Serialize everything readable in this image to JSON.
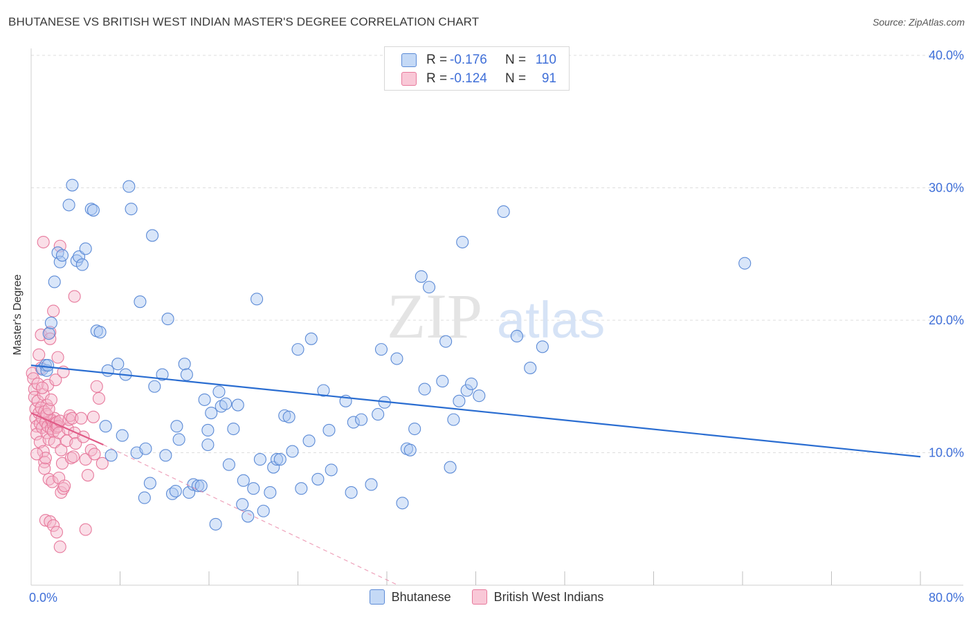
{
  "title": "BHUTANESE VS BRITISH WEST INDIAN MASTER'S DEGREE CORRELATION CHART",
  "source": "Source: ZipAtlas.com",
  "watermark": {
    "zip": "ZIP",
    "atlas": "atlas"
  },
  "colors": {
    "blue_fill": "#aac8f2",
    "blue_stroke": "#5b8ad6",
    "blue_line": "#2a6dd1",
    "pink_fill": "#f5b8cb",
    "pink_stroke": "#e7799c",
    "pink_line": "#e05a86",
    "grid": "#dddddd",
    "tick_text": "#3f6fd8"
  },
  "legend_top": [
    {
      "r_label": "R =",
      "r_value": "-0.176",
      "n_label": "N =",
      "n_value": "110"
    },
    {
      "r_label": "R =",
      "r_value": "-0.124",
      "n_label": "N =",
      "n_value": "91"
    }
  ],
  "legend_bottom": [
    {
      "label": "Bhutanese"
    },
    {
      "label": "British West Indians"
    }
  ],
  "chart_data": {
    "type": "scatter",
    "title": "BHUTANESE VS BRITISH WEST INDIAN MASTER'S DEGREE CORRELATION CHART",
    "xlabel": "",
    "ylabel": "Master's Degree",
    "xlim": [
      0,
      80
    ],
    "ylim": [
      0,
      40
    ],
    "x_tick_labels": [
      "0.0%",
      "80.0%"
    ],
    "y_ticks": [
      10,
      20,
      30,
      40
    ],
    "y_tick_labels": [
      "10.0%",
      "20.0%",
      "30.0%",
      "40.0%"
    ],
    "grid": true,
    "legend_position": "top-center",
    "series": [
      {
        "name": "Bhutanese",
        "r": -0.176,
        "n": 110,
        "trend": {
          "x": [
            0,
            80
          ],
          "y": [
            16.6,
            9.7
          ],
          "style": "solid"
        },
        "points": [
          [
            1.0,
            16.3
          ],
          [
            1.3,
            16.6
          ],
          [
            1.4,
            16.2
          ],
          [
            1.5,
            16.6
          ],
          [
            1.6,
            19.0
          ],
          [
            1.8,
            19.8
          ],
          [
            2.1,
            22.9
          ],
          [
            2.4,
            25.1
          ],
          [
            2.6,
            24.4
          ],
          [
            2.8,
            24.9
          ],
          [
            3.4,
            28.7
          ],
          [
            3.7,
            30.2
          ],
          [
            4.1,
            24.5
          ],
          [
            4.3,
            24.8
          ],
          [
            4.6,
            24.2
          ],
          [
            4.9,
            25.4
          ],
          [
            5.4,
            28.4
          ],
          [
            5.6,
            28.3
          ],
          [
            5.9,
            19.2
          ],
          [
            6.2,
            19.1
          ],
          [
            6.7,
            12.0
          ],
          [
            6.9,
            16.2
          ],
          [
            7.2,
            9.8
          ],
          [
            7.8,
            16.7
          ],
          [
            8.2,
            11.3
          ],
          [
            8.5,
            15.9
          ],
          [
            8.8,
            30.1
          ],
          [
            9.0,
            28.4
          ],
          [
            9.5,
            10.0
          ],
          [
            9.8,
            21.4
          ],
          [
            10.2,
            6.6
          ],
          [
            10.3,
            10.3
          ],
          [
            10.7,
            7.7
          ],
          [
            10.9,
            26.4
          ],
          [
            11.1,
            15.0
          ],
          [
            11.8,
            15.9
          ],
          [
            12.1,
            9.8
          ],
          [
            12.3,
            20.1
          ],
          [
            12.7,
            6.9
          ],
          [
            13.0,
            7.1
          ],
          [
            13.1,
            12.0
          ],
          [
            13.3,
            11.0
          ],
          [
            13.8,
            16.7
          ],
          [
            14.0,
            15.9
          ],
          [
            14.2,
            7.0
          ],
          [
            14.6,
            7.6
          ],
          [
            15.0,
            7.5
          ],
          [
            15.3,
            7.5
          ],
          [
            15.6,
            14.0
          ],
          [
            15.9,
            11.7
          ],
          [
            15.9,
            10.6
          ],
          [
            16.2,
            13.0
          ],
          [
            16.6,
            4.6
          ],
          [
            16.9,
            14.6
          ],
          [
            17.1,
            13.5
          ],
          [
            17.5,
            13.7
          ],
          [
            17.8,
            9.1
          ],
          [
            18.2,
            11.8
          ],
          [
            18.6,
            13.6
          ],
          [
            19.0,
            6.1
          ],
          [
            19.1,
            7.9
          ],
          [
            19.5,
            5.2
          ],
          [
            20.0,
            7.3
          ],
          [
            20.3,
            21.6
          ],
          [
            20.6,
            9.5
          ],
          [
            20.9,
            5.6
          ],
          [
            21.5,
            7.0
          ],
          [
            21.8,
            8.9
          ],
          [
            22.1,
            9.5
          ],
          [
            22.4,
            9.5
          ],
          [
            22.8,
            12.8
          ],
          [
            23.2,
            12.7
          ],
          [
            23.5,
            10.1
          ],
          [
            24.0,
            17.8
          ],
          [
            24.3,
            7.3
          ],
          [
            25.0,
            10.9
          ],
          [
            25.2,
            18.6
          ],
          [
            25.8,
            8.0
          ],
          [
            26.3,
            14.7
          ],
          [
            26.8,
            11.7
          ],
          [
            27.0,
            8.7
          ],
          [
            28.3,
            13.9
          ],
          [
            28.8,
            7.0
          ],
          [
            29.0,
            12.3
          ],
          [
            29.7,
            12.5
          ],
          [
            30.6,
            7.6
          ],
          [
            31.2,
            12.9
          ],
          [
            31.5,
            17.8
          ],
          [
            31.8,
            13.8
          ],
          [
            32.9,
            17.1
          ],
          [
            33.4,
            6.2
          ],
          [
            33.8,
            10.3
          ],
          [
            34.1,
            10.2
          ],
          [
            34.5,
            11.8
          ],
          [
            35.1,
            23.3
          ],
          [
            35.4,
            14.8
          ],
          [
            35.8,
            22.5
          ],
          [
            37.0,
            15.4
          ],
          [
            37.3,
            18.4
          ],
          [
            37.7,
            8.9
          ],
          [
            38.0,
            12.5
          ],
          [
            38.5,
            13.9
          ],
          [
            38.8,
            25.9
          ],
          [
            39.2,
            14.7
          ],
          [
            39.6,
            15.2
          ],
          [
            40.3,
            14.3
          ],
          [
            42.5,
            28.2
          ],
          [
            43.7,
            18.8
          ],
          [
            44.9,
            16.4
          ],
          [
            46.0,
            18.0
          ],
          [
            64.2,
            24.3
          ]
        ]
      },
      {
        "name": "British West Indians",
        "r": -0.124,
        "n": 91,
        "trend": {
          "x": [
            0,
            6.5
          ],
          "y": [
            13.0,
            10.6
          ],
          "style": "solid",
          "extension": {
            "x": [
              6.5,
              33.0
            ],
            "y": [
              10.6,
              0.0
            ],
            "style": "dashed"
          }
        },
        "points": [
          [
            0.1,
            16.0
          ],
          [
            0.2,
            15.6
          ],
          [
            0.3,
            14.8
          ],
          [
            0.3,
            14.2
          ],
          [
            0.4,
            13.3
          ],
          [
            0.4,
            12.6
          ],
          [
            0.5,
            12.0
          ],
          [
            0.5,
            11.4
          ],
          [
            0.6,
            15.2
          ],
          [
            0.6,
            13.9
          ],
          [
            0.7,
            17.4
          ],
          [
            0.7,
            13.0
          ],
          [
            0.8,
            12.2
          ],
          [
            0.8,
            10.8
          ],
          [
            0.9,
            18.9
          ],
          [
            0.9,
            16.4
          ],
          [
            1.0,
            12.6
          ],
          [
            1.0,
            11.9
          ],
          [
            1.1,
            14.4
          ],
          [
            1.1,
            10.1
          ],
          [
            1.2,
            9.3
          ],
          [
            1.2,
            8.8
          ],
          [
            1.3,
            9.6
          ],
          [
            1.3,
            12.3
          ],
          [
            1.4,
            11.5
          ],
          [
            1.4,
            13.6
          ],
          [
            1.5,
            15.1
          ],
          [
            1.5,
            12.0
          ],
          [
            1.6,
            11.0
          ],
          [
            1.6,
            8.0
          ],
          [
            1.1,
            25.9
          ],
          [
            1.7,
            19.1
          ],
          [
            1.7,
            18.6
          ],
          [
            1.8,
            12.5
          ],
          [
            1.8,
            11.8
          ],
          [
            1.9,
            12.4
          ],
          [
            1.9,
            7.8
          ],
          [
            2.0,
            12.1
          ],
          [
            2.0,
            11.6
          ],
          [
            2.1,
            12.6
          ],
          [
            2.1,
            10.8
          ],
          [
            2.2,
            15.5
          ],
          [
            2.2,
            12.2
          ],
          [
            2.3,
            12.3
          ],
          [
            2.3,
            11.9
          ],
          [
            2.4,
            17.2
          ],
          [
            2.4,
            12.0
          ],
          [
            2.5,
            11.5
          ],
          [
            2.5,
            8.1
          ],
          [
            2.6,
            12.4
          ],
          [
            2.7,
            10.2
          ],
          [
            2.7,
            7.0
          ],
          [
            2.8,
            9.2
          ],
          [
            2.9,
            16.1
          ],
          [
            2.9,
            7.3
          ],
          [
            3.0,
            7.5
          ],
          [
            3.2,
            10.9
          ],
          [
            3.3,
            11.8
          ],
          [
            3.4,
            12.5
          ],
          [
            3.5,
            12.8
          ],
          [
            3.6,
            9.6
          ],
          [
            3.7,
            12.6
          ],
          [
            3.8,
            9.7
          ],
          [
            3.9,
            11.5
          ],
          [
            4.0,
            10.7
          ],
          [
            2.0,
            20.7
          ],
          [
            2.6,
            25.6
          ],
          [
            3.9,
            21.8
          ],
          [
            4.5,
            12.6
          ],
          [
            4.7,
            11.2
          ],
          [
            4.9,
            9.5
          ],
          [
            5.1,
            8.3
          ],
          [
            5.4,
            10.2
          ],
          [
            5.6,
            12.7
          ],
          [
            5.7,
            9.9
          ],
          [
            5.9,
            15.0
          ],
          [
            6.1,
            14.1
          ],
          [
            6.4,
            9.2
          ],
          [
            1.3,
            4.9
          ],
          [
            1.7,
            4.8
          ],
          [
            2.0,
            4.5
          ],
          [
            2.3,
            4.0
          ],
          [
            2.6,
            2.9
          ],
          [
            4.9,
            4.2
          ],
          [
            0.9,
            13.4
          ],
          [
            1.0,
            14.9
          ],
          [
            1.2,
            13.1
          ],
          [
            1.4,
            12.9
          ],
          [
            1.6,
            13.3
          ],
          [
            1.8,
            14.0
          ],
          [
            0.5,
            9.9
          ]
        ]
      }
    ]
  }
}
